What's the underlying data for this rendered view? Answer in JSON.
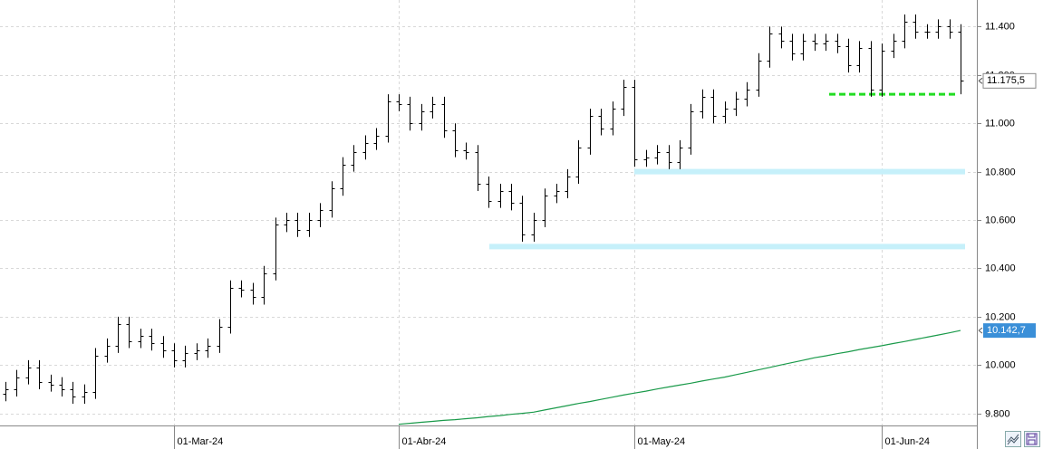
{
  "chart_data": {
    "type": "ohlc",
    "categories": [
      null,
      null,
      null,
      null,
      null,
      null,
      null,
      null,
      null,
      null,
      null,
      null,
      null,
      null,
      null,
      "01-Mar-24",
      null,
      null,
      null,
      null,
      null,
      null,
      null,
      null,
      null,
      null,
      null,
      null,
      null,
      null,
      null,
      null,
      null,
      null,
      null,
      "01-Abr-24",
      null,
      null,
      null,
      null,
      null,
      null,
      null,
      null,
      null,
      null,
      null,
      null,
      null,
      null,
      null,
      null,
      null,
      null,
      null,
      null,
      "01-May-24",
      null,
      null,
      null,
      null,
      null,
      null,
      null,
      null,
      null,
      null,
      null,
      null,
      null,
      null,
      null,
      null,
      null,
      null,
      null,
      null,
      null,
      "01-Jun-24",
      null,
      null,
      null,
      null,
      null,
      null,
      null
    ],
    "open": [
      9880,
      9900,
      9950,
      9990,
      9930,
      9920,
      9900,
      9870,
      9890,
      10040,
      10080,
      10170,
      10100,
      10120,
      10090,
      10060,
      10020,
      10050,
      10060,
      10080,
      10160,
      10320,
      10310,
      10280,
      10380,
      10580,
      10600,
      10560,
      10600,
      10640,
      10730,
      10830,
      10880,
      10920,
      10950,
      11090,
      11080,
      11000,
      11050,
      11080,
      10970,
      10890,
      10880,
      10750,
      10680,
      10720,
      10670,
      10540,
      10600,
      10700,
      10720,
      10780,
      10900,
      11030,
      10980,
      11060,
      11150,
      10850,
      10860,
      10880,
      10840,
      10900,
      11050,
      11110,
      11030,
      11060,
      11100,
      11140,
      11260,
      11370,
      11340,
      11290,
      11340,
      11330,
      11340,
      11320,
      11240,
      11310,
      11140,
      11300,
      11340,
      11420,
      11380,
      11380,
      11400,
      11380
    ],
    "high": [
      9930,
      9980,
      10020,
      10020,
      9960,
      9950,
      9930,
      9920,
      10070,
      10110,
      10200,
      10200,
      10150,
      10150,
      10120,
      10090,
      10080,
      10090,
      10110,
      10190,
      10350,
      10350,
      10340,
      10410,
      10610,
      10630,
      10630,
      10630,
      10670,
      10760,
      10860,
      10910,
      10950,
      10980,
      11120,
      11120,
      11110,
      11080,
      11110,
      11110,
      11000,
      10920,
      10910,
      10780,
      10750,
      10750,
      10700,
      10630,
      10730,
      10750,
      10810,
      10930,
      11060,
      11060,
      11090,
      11180,
      11180,
      10890,
      10910,
      10910,
      10930,
      11080,
      11140,
      11140,
      11090,
      11130,
      11170,
      11290,
      11400,
      11400,
      11370,
      11370,
      11370,
      11370,
      11370,
      11350,
      11340,
      11340,
      11330,
      11370,
      11450,
      11450,
      11410,
      11430,
      11430,
      11410
    ],
    "low": [
      9850,
      9870,
      9920,
      9900,
      9890,
      9870,
      9840,
      9840,
      9860,
      10010,
      10050,
      10070,
      10070,
      10060,
      10030,
      9990,
      9990,
      10020,
      10030,
      10050,
      10130,
      10280,
      10250,
      10250,
      10350,
      10550,
      10530,
      10530,
      10570,
      10610,
      10700,
      10800,
      10850,
      10890,
      10920,
      11050,
      10970,
      10970,
      11020,
      10940,
      10860,
      10850,
      10720,
      10650,
      10650,
      10640,
      10510,
      10510,
      10570,
      10670,
      10690,
      10750,
      10870,
      10950,
      10950,
      11030,
      10820,
      10820,
      10830,
      10810,
      10810,
      10870,
      11020,
      11000,
      11000,
      11030,
      11070,
      11110,
      11230,
      11310,
      11260,
      11260,
      11300,
      11300,
      11290,
      11210,
      11210,
      11110,
      11110,
      11270,
      11310,
      11350,
      11350,
      11350,
      11350,
      11120
    ],
    "close": [
      9900,
      9950,
      9990,
      9930,
      9920,
      9900,
      9870,
      9890,
      10040,
      10080,
      10170,
      10100,
      10120,
      10090,
      10060,
      10020,
      10050,
      10060,
      10080,
      10160,
      10320,
      10310,
      10280,
      10380,
      10580,
      10600,
      10560,
      10600,
      10640,
      10730,
      10830,
      10880,
      10920,
      10950,
      11090,
      11080,
      11000,
      11050,
      11080,
      10970,
      10890,
      10880,
      10750,
      10680,
      10720,
      10670,
      10540,
      10600,
      10700,
      10720,
      10780,
      10900,
      11030,
      10980,
      11060,
      11150,
      10850,
      10860,
      10880,
      10840,
      10900,
      11050,
      11110,
      11030,
      11060,
      11100,
      11140,
      11260,
      11370,
      11340,
      11290,
      11340,
      11330,
      11340,
      11320,
      11240,
      11310,
      11140,
      11300,
      11340,
      11420,
      11380,
      11380,
      11400,
      11380,
      11175.5
    ],
    "close_label": "11.175,5",
    "color": "#000000",
    "moving_average": {
      "color": "#1a9a4a",
      "label_color": "#3a8fd8",
      "label": "10.142,7",
      "values": [
        null,
        null,
        null,
        null,
        null,
        null,
        null,
        null,
        null,
        null,
        null,
        null,
        null,
        null,
        null,
        null,
        null,
        null,
        null,
        null,
        null,
        null,
        null,
        null,
        null,
        null,
        null,
        null,
        null,
        null,
        null,
        null,
        null,
        null,
        null,
        9755,
        9759,
        9763,
        9767,
        9771,
        9774,
        9778,
        9782,
        9787,
        9791,
        9796,
        9800,
        9805,
        9814,
        9823,
        9832,
        9841,
        9849,
        9858,
        9867,
        9876,
        9884,
        9892,
        9901,
        9909,
        9917,
        9925,
        9934,
        9942,
        9950,
        9960,
        9970,
        9980,
        9990,
        10000,
        10010,
        10020,
        10030,
        10038,
        10047,
        10055,
        10064,
        10072,
        10080,
        10089,
        10097,
        10106,
        10115,
        10124,
        10133,
        10142.7
      ]
    },
    "levels": [
      {
        "value": 11120,
        "color": "#22dd22",
        "style": "dashed"
      },
      {
        "value": 10800,
        "color": "#c6f0fa",
        "style": "band"
      },
      {
        "value": 10490,
        "color": "#c6f0fa",
        "style": "band"
      }
    ],
    "ylim": [
      9750,
      11510
    ],
    "yticks": [
      {
        "value": 9800,
        "label": "9.800"
      },
      {
        "value": 10000,
        "label": "10.000"
      },
      {
        "value": 10200,
        "label": "10.200"
      },
      {
        "value": 10400,
        "label": "10.400"
      },
      {
        "value": 10600,
        "label": "10.600"
      },
      {
        "value": 10800,
        "label": "10.800"
      },
      {
        "value": 11000,
        "label": "11.000"
      },
      {
        "value": 11200,
        "label": "11.200"
      },
      {
        "value": 11400,
        "label": "11.400"
      }
    ],
    "grid": true
  }
}
